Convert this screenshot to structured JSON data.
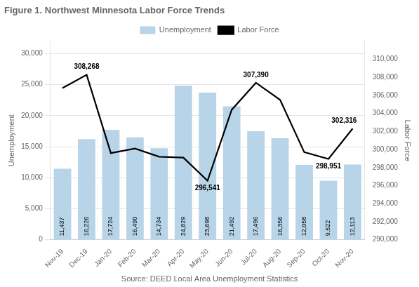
{
  "chart_data": {
    "type": "bar",
    "title": "Figure 1. Northwest Minnesota Labor Force Trends",
    "source": "Source: DEED Local Area Unemployment Statistics",
    "categories": [
      "Nov-19",
      "Dec-19",
      "Jan-20",
      "Feb-20",
      "Mar-20",
      "Apr-20",
      "May-20",
      "Jun-20",
      "Jul-20",
      "Aug-20",
      "Sep-20",
      "Oct-20",
      "Nov-20"
    ],
    "series": [
      {
        "name": "Unemployment",
        "type": "bar",
        "color": "#b8d4e8",
        "values": [
          11437,
          16226,
          17724,
          16490,
          14734,
          24829,
          23698,
          21492,
          17496,
          16356,
          12058,
          9522,
          12113
        ],
        "value_labels": [
          "11,437",
          "16,226",
          "17,724",
          "16,490",
          "14,734",
          "24,829",
          "23,698",
          "21,492",
          "17,496",
          "16,356",
          "12,058",
          "9,522",
          "12,113"
        ]
      },
      {
        "name": "Labor Force",
        "type": "line",
        "color": "#000000",
        "axis": "y2",
        "values": [
          306800,
          308268,
          299600,
          300100,
          299200,
          299100,
          296541,
          304400,
          307390,
          305500,
          299700,
          298951,
          302316
        ]
      }
    ],
    "data_labels": true,
    "ylabel": "Unemployment",
    "y2label": "Labor Force",
    "ylim": [
      0,
      32000
    ],
    "yticks": [
      0,
      {
        "value": 5000,
        "label": "5,000"
      },
      {
        "value": 10000,
        "label": "10,000"
      },
      {
        "value": 15000,
        "label": "15,000"
      },
      {
        "value": 20000,
        "label": "20,000"
      },
      {
        "value": 25000,
        "label": "25,000"
      },
      {
        "value": 30000,
        "label": "30,000"
      }
    ],
    "y2lim": [
      290000,
      312000
    ],
    "y2ticks": [
      {
        "value": 290000,
        "label": "290,000"
      },
      {
        "value": 292000,
        "label": "292,000"
      },
      {
        "value": 294000,
        "label": "294,000"
      },
      {
        "value": 296000,
        "label": "296,000"
      },
      {
        "value": 298000,
        "label": "298,000"
      },
      {
        "value": 300000,
        "label": "300,000"
      },
      {
        "value": 302000,
        "label": "302,000"
      },
      {
        "value": 304000,
        "label": "304,000"
      },
      {
        "value": 306000,
        "label": "306,000"
      },
      {
        "value": 308000,
        "label": "308,000"
      },
      {
        "value": 310000,
        "label": "310,000"
      }
    ],
    "grid": true,
    "legend": "top",
    "annotations": [
      {
        "x": "Dec-19",
        "y": 308268,
        "label": "308,268",
        "axis": "y2"
      },
      {
        "x": "May-20",
        "y": 296541,
        "label": "296,541",
        "axis": "y2"
      },
      {
        "x": "Jul-20",
        "y": 307390,
        "label": "307,390",
        "axis": "y2"
      },
      {
        "x": "Oct-20",
        "y": 298951,
        "label": "298,951",
        "axis": "y2"
      },
      {
        "x": "Nov-20",
        "y": 302316,
        "label": "302,316",
        "axis": "y2"
      }
    ]
  }
}
